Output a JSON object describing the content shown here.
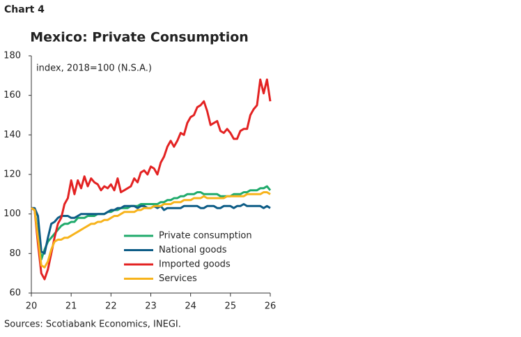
{
  "chart_label": "Chart 4",
  "chart_data": {
    "type": "line",
    "title": "Mexico: Private Consumption",
    "subtitle": "index, 2018=100 (N.S.A.)",
    "x": [
      20,
      20.083,
      20.167,
      20.25,
      20.333,
      20.417,
      20.5,
      20.583,
      20.667,
      20.75,
      20.833,
      20.917,
      21,
      21.083,
      21.167,
      21.25,
      21.333,
      21.417,
      21.5,
      21.583,
      21.667,
      21.75,
      21.833,
      21.917,
      22,
      22.083,
      22.167,
      22.25,
      22.333,
      22.417,
      22.5,
      22.583,
      22.667,
      22.75,
      22.833,
      22.917,
      23,
      23.083,
      23.167,
      23.25,
      23.333,
      23.417,
      23.5,
      23.583,
      23.667,
      23.75,
      23.833,
      23.917,
      24,
      24.083,
      24.167,
      24.25,
      24.333,
      24.417,
      24.5,
      24.583,
      24.667,
      24.75,
      24.833,
      24.917,
      25,
      25.083,
      25.167,
      25.25,
      25.333,
      25.417,
      25.5,
      25.583,
      25.667,
      25.75,
      25.833,
      25.917,
      26
    ],
    "series": [
      {
        "name": "Private consumption",
        "color": "#1faa6b",
        "values": [
          103,
          102,
          90,
          77,
          82,
          86,
          88,
          90,
          92,
          94,
          95,
          95,
          96,
          96,
          98,
          98,
          98,
          99,
          99,
          99,
          100,
          100,
          100,
          101,
          101,
          102,
          102,
          103,
          103,
          103,
          104,
          104,
          104,
          105,
          105,
          105,
          105,
          105,
          105,
          106,
          106,
          107,
          107,
          108,
          108,
          109,
          109,
          110,
          110,
          110,
          111,
          111,
          110,
          110,
          110,
          110,
          110,
          109,
          109,
          109,
          109,
          110,
          110,
          110,
          111,
          111,
          112,
          112,
          112,
          113,
          113,
          114,
          112
        ]
      },
      {
        "name": "National goods",
        "color": "#0d5c86",
        "values": [
          103,
          103,
          99,
          81,
          80,
          88,
          95,
          96,
          98,
          99,
          99,
          99,
          98,
          98,
          99,
          100,
          100,
          100,
          100,
          100,
          100,
          100,
          100,
          101,
          102,
          102,
          103,
          103,
          104,
          104,
          104,
          104,
          103,
          104,
          104,
          103,
          103,
          104,
          103,
          104,
          102,
          103,
          103,
          103,
          103,
          103,
          104,
          104,
          104,
          104,
          104,
          103,
          103,
          104,
          104,
          104,
          103,
          103,
          104,
          104,
          104,
          103,
          104,
          104,
          105,
          104,
          104,
          104,
          104,
          104,
          103,
          104,
          103
        ]
      },
      {
        "name": "Imported goods",
        "color": "#e32222",
        "values": [
          103,
          102,
          85,
          70,
          67,
          72,
          80,
          88,
          95,
          98,
          105,
          108,
          117,
          110,
          117,
          113,
          119,
          114,
          118,
          116,
          115,
          112,
          114,
          113,
          115,
          112,
          118,
          111,
          112,
          113,
          114,
          118,
          116,
          121,
          122,
          120,
          124,
          123,
          120,
          126,
          129,
          134,
          137,
          134,
          137,
          141,
          140,
          146,
          149,
          150,
          154,
          155,
          157,
          152,
          145,
          146,
          147,
          142,
          141,
          143,
          141,
          138,
          138,
          142,
          143,
          143,
          150,
          153,
          155,
          168,
          161,
          168,
          157
        ]
      },
      {
        "name": "Services",
        "color": "#f7b31b",
        "values": [
          103,
          102,
          88,
          74,
          73,
          76,
          82,
          86,
          87,
          87,
          88,
          88,
          89,
          90,
          91,
          92,
          93,
          94,
          95,
          95,
          96,
          96,
          97,
          97,
          98,
          99,
          99,
          100,
          101,
          101,
          101,
          101,
          102,
          102,
          103,
          103,
          103,
          104,
          104,
          104,
          105,
          105,
          105,
          106,
          106,
          106,
          107,
          107,
          107,
          108,
          108,
          108,
          109,
          108,
          108,
          108,
          108,
          108,
          108,
          109,
          109,
          109,
          109,
          109,
          109,
          110,
          110,
          110,
          110,
          110,
          111,
          111,
          110
        ]
      }
    ],
    "xlim": [
      20,
      26
    ],
    "xticks": [
      20,
      21,
      22,
      23,
      24,
      25,
      26
    ],
    "ylim": [
      60,
      180
    ],
    "yticks": [
      60,
      80,
      100,
      120,
      140,
      160,
      180
    ]
  },
  "source": "Sources: Scotiabank Economics, INEGI."
}
